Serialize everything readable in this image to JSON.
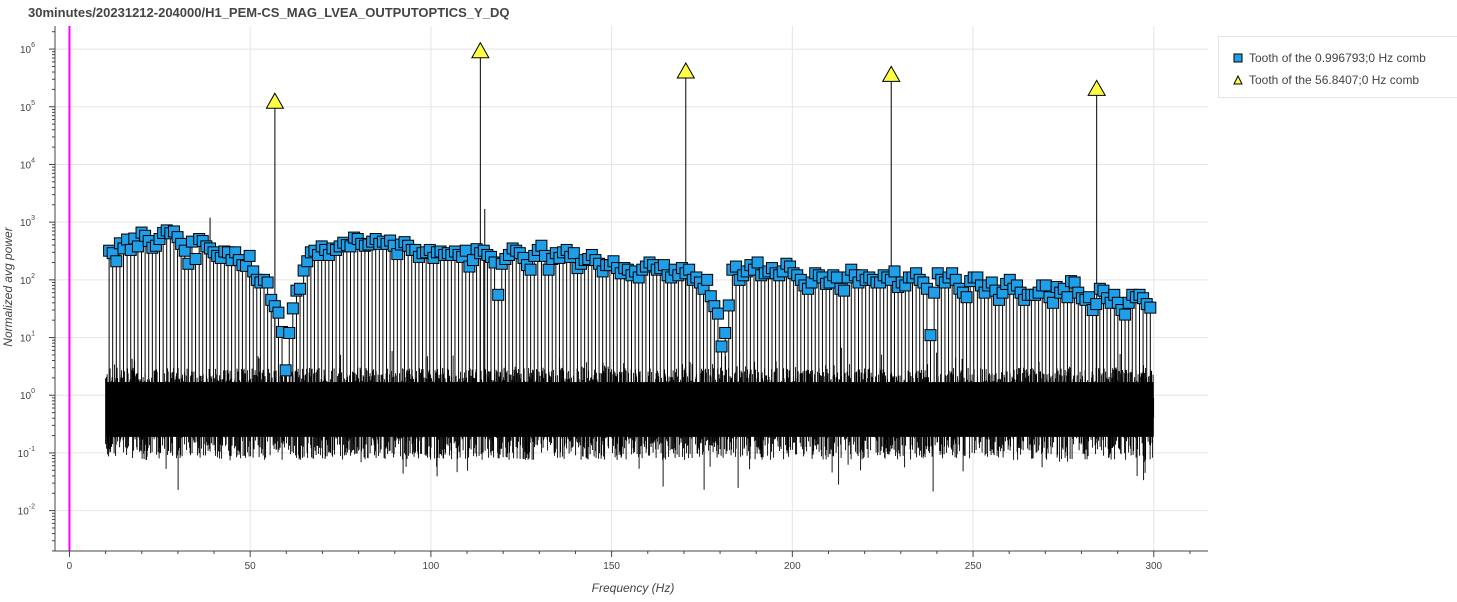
{
  "chart_data": {
    "type": "scatter",
    "title": "30minutes/20231212-204000/H1_PEM-CS_MAG_LVEA_OUTPUTOPTICS_Y_DQ",
    "xlabel": "Frequency (Hz)",
    "ylabel": "Normalized avg power",
    "xlim": [
      -4,
      315
    ],
    "ylim_log10": [
      -2.7,
      6.4
    ],
    "y_scale": "log",
    "grid": true,
    "x_ticks": [
      "0",
      "50",
      "100",
      "150",
      "200",
      "250",
      "300"
    ],
    "y_ticks": [
      "-2",
      "-1",
      "0",
      "1",
      "2",
      "3",
      "4",
      "5",
      "6"
    ],
    "vertical_marker": {
      "x": 0,
      "color": "#ff00ff"
    },
    "noise_floor": {
      "x_range": [
        10,
        300
      ],
      "typical": 0.6,
      "min": 0.05,
      "max": 4,
      "color": "#000000"
    },
    "series": [
      {
        "name": "Tooth of the 0.996793;0 Hz comb",
        "marker": "square",
        "color": "#1f9fe8",
        "points": [
          [
            10.97,
            320
          ],
          [
            11.96,
            290
          ],
          [
            12.96,
            210
          ],
          [
            13.96,
            430
          ],
          [
            14.95,
            350
          ],
          [
            15.95,
            500
          ],
          [
            16.95,
            330
          ],
          [
            17.94,
            520
          ],
          [
            18.94,
            380
          ],
          [
            19.94,
            660
          ],
          [
            20.93,
            580
          ],
          [
            21.93,
            470
          ],
          [
            22.93,
            360
          ],
          [
            23.92,
            390
          ],
          [
            24.92,
            510
          ],
          [
            25.92,
            650
          ],
          [
            26.91,
            720
          ],
          [
            27.91,
            640
          ],
          [
            28.91,
            690
          ],
          [
            29.91,
            550
          ],
          [
            30.9,
            420
          ],
          [
            31.9,
            320
          ],
          [
            32.9,
            190
          ],
          [
            33.89,
            460
          ],
          [
            34.89,
            230
          ],
          [
            35.89,
            510
          ],
          [
            36.88,
            470
          ],
          [
            37.88,
            380
          ],
          [
            38.88,
            350
          ],
          [
            39.87,
            300
          ],
          [
            40.87,
            260
          ],
          [
            41.87,
            240
          ],
          [
            42.86,
            310
          ],
          [
            43.86,
            300
          ],
          [
            44.86,
            220
          ],
          [
            45.85,
            300
          ],
          [
            46.85,
            220
          ],
          [
            47.85,
            180
          ],
          [
            48.84,
            175
          ],
          [
            49.84,
            260
          ],
          [
            50.84,
            140
          ],
          [
            51.83,
            100
          ],
          [
            52.83,
            90
          ],
          [
            53.83,
            100
          ],
          [
            54.83,
            90
          ],
          [
            55.82,
            45
          ],
          [
            56.82,
            35
          ],
          [
            57.82,
            27
          ],
          [
            58.81,
            12.5
          ],
          [
            59.81,
            2.7
          ],
          [
            60.81,
            12
          ],
          [
            61.8,
            32
          ],
          [
            62.8,
            65
          ],
          [
            63.8,
            70
          ],
          [
            64.79,
            145
          ],
          [
            65.79,
            210
          ],
          [
            66.79,
            300
          ],
          [
            67.78,
            320
          ],
          [
            68.78,
            270
          ],
          [
            69.78,
            380
          ],
          [
            70.77,
            330
          ],
          [
            71.77,
            270
          ],
          [
            72.77,
            350
          ],
          [
            73.76,
            330
          ],
          [
            74.76,
            380
          ],
          [
            75.76,
            440
          ],
          [
            76.75,
            400
          ],
          [
            77.75,
            380
          ],
          [
            78.75,
            540
          ],
          [
            79.75,
            510
          ],
          [
            80.74,
            420
          ],
          [
            81.74,
            390
          ],
          [
            82.74,
            410
          ],
          [
            83.73,
            460
          ],
          [
            84.73,
            510
          ],
          [
            85.73,
            420
          ],
          [
            86.72,
            460
          ],
          [
            87.72,
            420
          ],
          [
            88.72,
            480
          ],
          [
            89.71,
            390
          ],
          [
            90.71,
            280
          ],
          [
            91.71,
            410
          ],
          [
            92.7,
            450
          ],
          [
            93.7,
            390
          ],
          [
            94.7,
            330
          ],
          [
            95.69,
            330
          ],
          [
            96.69,
            250
          ],
          [
            97.69,
            290
          ],
          [
            98.68,
            300
          ],
          [
            99.68,
            330
          ],
          [
            100.68,
            240
          ],
          [
            101.67,
            300
          ],
          [
            102.67,
            310
          ],
          [
            103.67,
            270
          ],
          [
            104.67,
            290
          ],
          [
            105.66,
            270
          ],
          [
            106.66,
            310
          ],
          [
            107.66,
            270
          ],
          [
            108.65,
            250
          ],
          [
            109.65,
            320
          ],
          [
            110.65,
            170
          ],
          [
            111.64,
            220
          ],
          [
            112.64,
            340
          ],
          [
            113.63,
            290
          ],
          [
            114.63,
            320
          ],
          [
            115.63,
            270
          ],
          [
            116.62,
            250
          ],
          [
            117.62,
            200
          ],
          [
            118.62,
            55
          ],
          [
            119.61,
            190
          ],
          [
            120.61,
            230
          ],
          [
            121.61,
            270
          ],
          [
            122.61,
            350
          ],
          [
            123.6,
            320
          ],
          [
            124.6,
            290
          ],
          [
            125.6,
            240
          ],
          [
            126.59,
            180
          ],
          [
            127.59,
            150
          ],
          [
            128.59,
            260
          ],
          [
            129.58,
            330
          ],
          [
            130.58,
            390
          ],
          [
            131.58,
            260
          ],
          [
            132.57,
            150
          ],
          [
            133.57,
            230
          ],
          [
            134.57,
            290
          ],
          [
            135.56,
            240
          ],
          [
            136.56,
            300
          ],
          [
            137.56,
            330
          ],
          [
            138.55,
            250
          ],
          [
            139.55,
            290
          ],
          [
            140.55,
            160
          ],
          [
            141.54,
            190
          ],
          [
            142.54,
            220
          ],
          [
            143.54,
            230
          ],
          [
            144.53,
            270
          ],
          [
            145.53,
            220
          ],
          [
            146.53,
            190
          ],
          [
            147.52,
            140
          ],
          [
            148.52,
            180
          ],
          [
            149.52,
            180
          ],
          [
            150.51,
            210
          ],
          [
            151.51,
            160
          ],
          [
            152.51,
            130
          ],
          [
            153.51,
            160
          ],
          [
            154.5,
            150
          ],
          [
            155.5,
            120
          ],
          [
            156.5,
            140
          ],
          [
            157.49,
            110
          ],
          [
            158.49,
            150
          ],
          [
            159.49,
            170
          ],
          [
            160.48,
            200
          ],
          [
            161.48,
            180
          ],
          [
            162.48,
            150
          ],
          [
            163.47,
            160
          ],
          [
            164.47,
            180
          ],
          [
            165.47,
            120
          ],
          [
            166.46,
            110
          ],
          [
            167.46,
            150
          ],
          [
            168.46,
            120
          ],
          [
            169.45,
            160
          ],
          [
            170.45,
            130
          ],
          [
            171.45,
            150
          ],
          [
            172.44,
            100
          ],
          [
            173.44,
            110
          ],
          [
            174.44,
            90
          ],
          [
            175.43,
            70
          ],
          [
            176.43,
            100
          ],
          [
            177.43,
            52
          ],
          [
            178.42,
            35
          ],
          [
            179.42,
            26
          ],
          [
            180.42,
            7
          ],
          [
            181.42,
            12
          ],
          [
            182.41,
            36
          ],
          [
            183.41,
            150
          ],
          [
            184.41,
            170
          ],
          [
            185.4,
            100
          ],
          [
            186.4,
            120
          ],
          [
            187.4,
            140
          ],
          [
            188.39,
            180
          ],
          [
            189.39,
            150
          ],
          [
            190.39,
            200
          ],
          [
            191.38,
            120
          ],
          [
            192.38,
            130
          ],
          [
            193.38,
            140
          ],
          [
            194.37,
            160
          ],
          [
            195.37,
            130
          ],
          [
            196.37,
            120
          ],
          [
            197.36,
            140
          ],
          [
            198.36,
            190
          ],
          [
            199.36,
            170
          ],
          [
            200.35,
            130
          ],
          [
            201.35,
            120
          ],
          [
            202.35,
            100
          ],
          [
            203.34,
            80
          ],
          [
            204.34,
            70
          ],
          [
            205.34,
            90
          ],
          [
            206.33,
            130
          ],
          [
            207.33,
            120
          ],
          [
            208.33,
            110
          ],
          [
            209.33,
            85
          ],
          [
            210.32,
            90
          ],
          [
            211.32,
            120
          ],
          [
            212.32,
            110
          ],
          [
            213.31,
            70
          ],
          [
            214.31,
            65
          ],
          [
            215.31,
            110
          ],
          [
            216.3,
            150
          ],
          [
            217.3,
            120
          ],
          [
            218.3,
            90
          ],
          [
            219.29,
            120
          ],
          [
            220.29,
            100
          ],
          [
            221.29,
            110
          ],
          [
            222.28,
            100
          ],
          [
            223.28,
            90
          ],
          [
            224.28,
            90
          ],
          [
            225.27,
            120
          ],
          [
            226.27,
            110
          ],
          [
            227.27,
            100
          ],
          [
            228.26,
            140
          ],
          [
            229.26,
            75
          ],
          [
            230.26,
            90
          ],
          [
            231.25,
            80
          ],
          [
            232.25,
            110
          ],
          [
            233.25,
            110
          ],
          [
            234.24,
            130
          ],
          [
            235.24,
            100
          ],
          [
            236.24,
            90
          ],
          [
            237.24,
            70
          ],
          [
            238.23,
            11
          ],
          [
            239.23,
            60
          ],
          [
            240.23,
            130
          ],
          [
            241.22,
            100
          ],
          [
            242.22,
            90
          ],
          [
            243.22,
            110
          ],
          [
            244.21,
            130
          ],
          [
            245.21,
            100
          ],
          [
            246.21,
            70
          ],
          [
            247.2,
            60
          ],
          [
            248.2,
            50
          ],
          [
            249.2,
            95
          ],
          [
            250.19,
            110
          ],
          [
            251.19,
            110
          ],
          [
            252.19,
            80
          ],
          [
            253.18,
            60
          ],
          [
            254.18,
            80
          ],
          [
            255.18,
            90
          ],
          [
            256.17,
            65
          ],
          [
            257.17,
            45
          ],
          [
            258.17,
            60
          ],
          [
            259.16,
            85
          ],
          [
            260.16,
            100
          ],
          [
            261.16,
            70
          ],
          [
            262.15,
            80
          ],
          [
            263.15,
            60
          ],
          [
            264.15,
            45
          ],
          [
            265.15,
            55
          ],
          [
            266.14,
            55
          ],
          [
            267.14,
            55
          ],
          [
            268.14,
            60
          ],
          [
            269.13,
            80
          ],
          [
            270.13,
            80
          ],
          [
            271.13,
            50
          ],
          [
            272.12,
            40
          ],
          [
            273.12,
            75
          ],
          [
            274.12,
            60
          ],
          [
            275.11,
            70
          ],
          [
            276.11,
            50
          ],
          [
            277.11,
            95
          ],
          [
            278.1,
            90
          ],
          [
            279.1,
            60
          ],
          [
            280.1,
            48
          ],
          [
            281.09,
            45
          ],
          [
            282.09,
            50
          ],
          [
            283.09,
            30
          ],
          [
            284.08,
            38
          ],
          [
            285.08,
            70
          ],
          [
            286.08,
            65
          ],
          [
            287.07,
            48
          ],
          [
            288.07,
            40
          ],
          [
            289.07,
            55
          ],
          [
            290.06,
            40
          ],
          [
            291.06,
            30
          ],
          [
            292.06,
            25
          ],
          [
            293.06,
            40
          ],
          [
            294.05,
            55
          ],
          [
            295.05,
            50
          ],
          [
            296.05,
            55
          ],
          [
            297.04,
            48
          ],
          [
            298.04,
            38
          ],
          [
            299.04,
            33
          ]
        ]
      },
      {
        "name": "Tooth of the 56.8407;0 Hz comb",
        "marker": "triangle",
        "color": "#ffff44",
        "points": [
          [
            56.84,
            120000
          ],
          [
            113.68,
            900000
          ],
          [
            170.52,
            400000
          ],
          [
            227.36,
            350000
          ],
          [
            284.2,
            200000
          ]
        ]
      }
    ],
    "extra_lines": [
      {
        "x": 38.9,
        "y": 1200
      },
      {
        "x": 114.9,
        "y": 1700
      }
    ]
  }
}
